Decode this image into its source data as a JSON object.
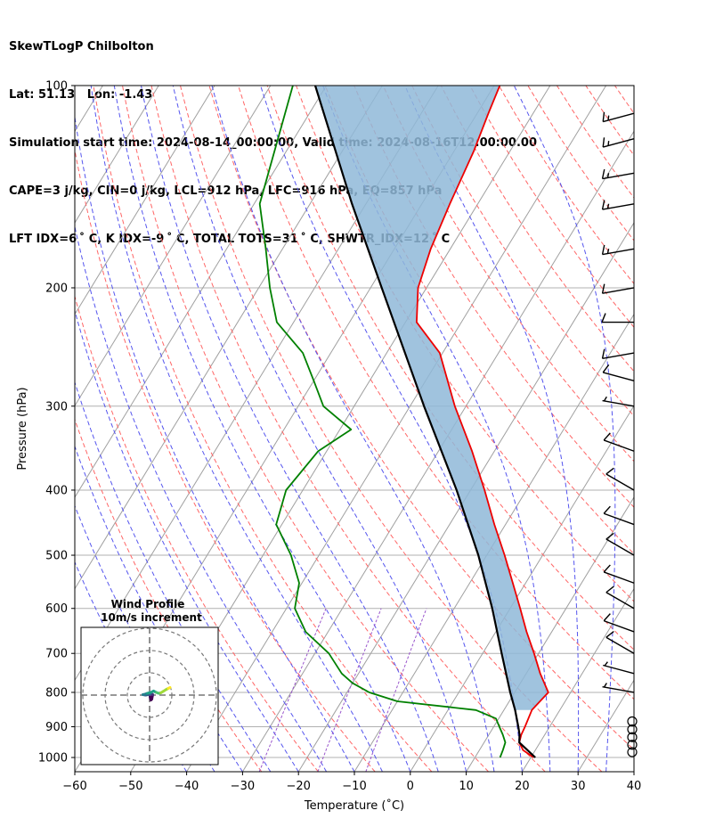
{
  "header": {
    "line1": "SkewTLogP Chilbolton",
    "line2": "Lat: 51.13   Lon: -1.43",
    "line3": "Simulation start time: 2024-08-14_00:00:00, Valid time: 2024-08-16T12:00:00.00",
    "line4": "CAPE=3 j/kg, CIN=0 j/kg, LCL=912 hPa, LFC=916 hPa, EQ=857 hPa",
    "line5": "LFT IDX=6 ˚ C, K IDX=-9 ˚ C, TOTAL TOTS=31 ˚ C, SHWTR_IDX=12 ˚ C"
  },
  "chart_data": {
    "type": "skewt-logp",
    "xlabel": "Temperature (˚C)",
    "ylabel": "Pressure (hPa)",
    "xlim": [
      -60,
      40
    ],
    "ylim": [
      1050,
      100
    ],
    "x_ticks": [
      "−60",
      "−50",
      "−40",
      "−30",
      "−20",
      "−10",
      "0",
      "10",
      "20",
      "30",
      "40"
    ],
    "y_ticks": [
      100,
      200,
      300,
      400,
      500,
      600,
      700,
      800,
      900,
      1000
    ],
    "colors": {
      "temperature": "#ee0000",
      "dewpoint": "#008000",
      "parcel": "#000000",
      "cape_fill": "#8fb8d8",
      "isotherm": "#a0a0a0",
      "dry_adiabat": "#ff6666",
      "moist_adiabat": "#5555ee",
      "mixing_ratio": "#9955cc"
    },
    "temperature_profile": [
      [
        1000,
        20.5
      ],
      [
        975,
        17.8
      ],
      [
        950,
        16.3
      ],
      [
        925,
        15.8
      ],
      [
        900,
        15.6
      ],
      [
        850,
        15.0
      ],
      [
        800,
        16.0
      ],
      [
        750,
        12.5
      ],
      [
        700,
        9.2
      ],
      [
        650,
        5.5
      ],
      [
        600,
        1.8
      ],
      [
        550,
        -2.3
      ],
      [
        500,
        -6.8
      ],
      [
        450,
        -12.0
      ],
      [
        400,
        -17.5
      ],
      [
        350,
        -24.0
      ],
      [
        300,
        -32.0
      ],
      [
        250,
        -40.5
      ],
      [
        225,
        -48.0
      ],
      [
        200,
        -51.5
      ],
      [
        175,
        -53.5
      ],
      [
        150,
        -55.0
      ],
      [
        125,
        -56.5
      ],
      [
        110,
        -58.0
      ],
      [
        100,
        -59.0
      ]
    ],
    "dewpoint_profile": [
      [
        1000,
        14.5
      ],
      [
        975,
        14.2
      ],
      [
        950,
        13.8
      ],
      [
        925,
        12.5
      ],
      [
        900,
        11.0
      ],
      [
        875,
        9.5
      ],
      [
        850,
        5.0
      ],
      [
        825,
        -10.0
      ],
      [
        800,
        -16.0
      ],
      [
        775,
        -20.0
      ],
      [
        750,
        -23.0
      ],
      [
        700,
        -27.5
      ],
      [
        650,
        -34.0
      ],
      [
        600,
        -38.5
      ],
      [
        550,
        -40.5
      ],
      [
        500,
        -45.0
      ],
      [
        450,
        -51.0
      ],
      [
        400,
        -53.0
      ],
      [
        350,
        -51.5
      ],
      [
        325,
        -48.0
      ],
      [
        300,
        -55.5
      ],
      [
        275,
        -60.0
      ],
      [
        250,
        -65.0
      ],
      [
        225,
        -73.0
      ],
      [
        200,
        -78.0
      ],
      [
        175,
        -83.0
      ],
      [
        150,
        -89.0
      ],
      [
        100,
        -96.0
      ]
    ],
    "parcel_profile": [
      [
        1000,
        20.8
      ],
      [
        950,
        16.3
      ],
      [
        925,
        15.5
      ],
      [
        900,
        14.4
      ],
      [
        850,
        12.0
      ],
      [
        800,
        9.2
      ],
      [
        700,
        3.4
      ],
      [
        600,
        -3.2
      ],
      [
        500,
        -11.5
      ],
      [
        400,
        -22.5
      ],
      [
        300,
        -37.5
      ],
      [
        200,
        -58.0
      ],
      [
        150,
        -72.5
      ],
      [
        100,
        -92.0
      ]
    ],
    "wind_barbs": {
      "pressures": [
        1000,
        975,
        950,
        925,
        900,
        800,
        750,
        700,
        650,
        600,
        550,
        500,
        450,
        400,
        350,
        300,
        275,
        250,
        225,
        200,
        175,
        150,
        135,
        120,
        110
      ],
      "speed_kt": [
        0,
        0,
        0,
        0,
        0,
        5,
        5,
        10,
        10,
        10,
        10,
        10,
        10,
        10,
        10,
        5,
        10,
        10,
        10,
        10,
        15,
        15,
        15,
        15,
        15
      ],
      "direction_deg": [
        0,
        0,
        0,
        0,
        0,
        280,
        285,
        300,
        290,
        300,
        290,
        300,
        290,
        300,
        290,
        280,
        285,
        260,
        270,
        260,
        260,
        260,
        260,
        255,
        255
      ]
    },
    "hodograph": {
      "title_line1": "Wind Profile",
      "title_line2": "10m/s increment",
      "rings_ms": [
        10,
        20,
        30
      ],
      "points": [
        [
          0.2,
          -0.8
        ],
        [
          0.6,
          -2.2
        ],
        [
          1.0,
          -1.8
        ],
        [
          1.4,
          0.2
        ],
        [
          0.8,
          0.6
        ],
        [
          0.2,
          0.4
        ],
        [
          -0.6,
          0.2
        ],
        [
          -1.8,
          0.0
        ],
        [
          -3.0,
          0.2
        ],
        [
          -2.4,
          0.3
        ],
        [
          -1.0,
          0.8
        ],
        [
          0.6,
          1.2
        ],
        [
          1.8,
          1.8
        ],
        [
          3.0,
          1.2
        ],
        [
          4.0,
          0.8
        ],
        [
          5.0,
          1.0
        ],
        [
          6.0,
          1.6
        ],
        [
          7.6,
          2.6
        ],
        [
          8.4,
          3.0
        ],
        [
          9.2,
          3.4
        ]
      ]
    }
  }
}
